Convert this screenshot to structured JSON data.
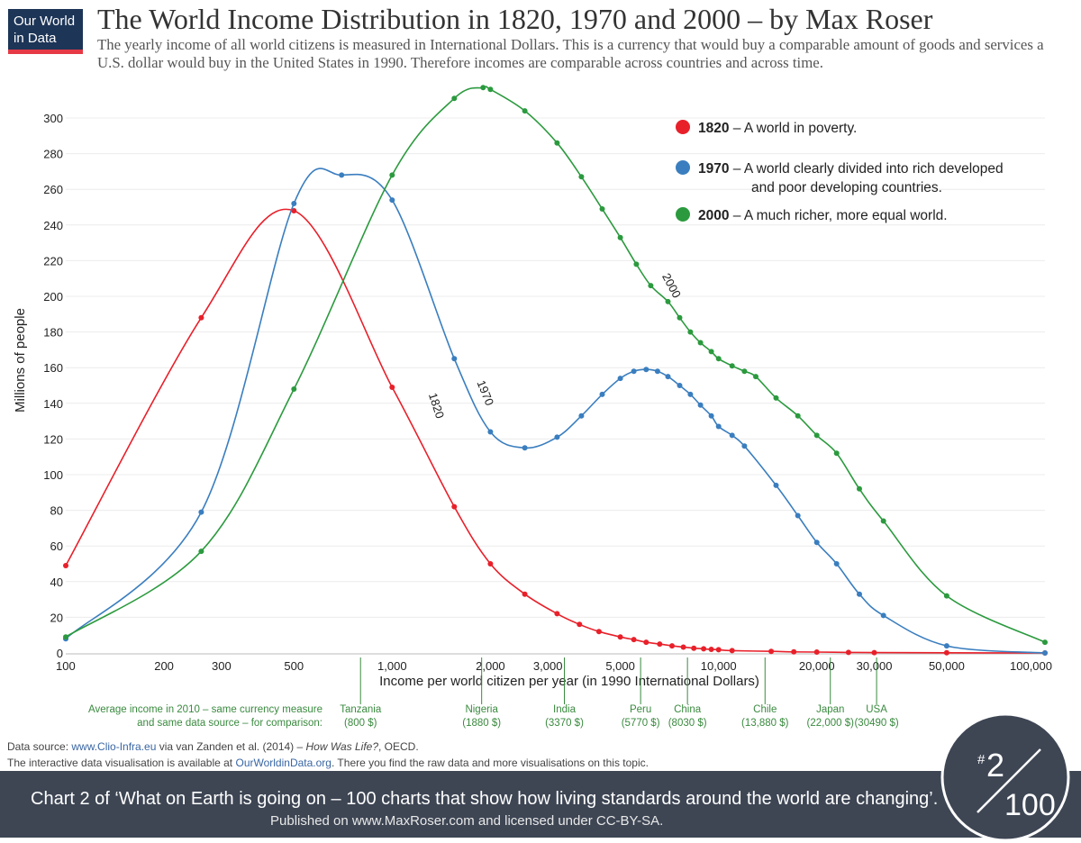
{
  "logo": {
    "line1": "Our World",
    "line2": "in Data"
  },
  "header": {
    "title": "The World Income Distribution in 1820, 1970 and 2000 – by Max Roser",
    "subtitle": "The yearly income of all world citizens is measured in International Dollars. This is a currency that would buy a comparable amount of goods and services a U.S. dollar would buy in the United States in 1990. Therefore incomes are comparable across countries and across time."
  },
  "chart_data": {
    "type": "line",
    "title": "The World Income Distribution in 1820, 1970 and 2000",
    "xlabel": "Income per world citizen per year (in 1990 International Dollars)",
    "ylabel": "Millions of people",
    "xscale": "log",
    "xlim": [
      100,
      100000
    ],
    "ylim": [
      0,
      310
    ],
    "yticks": [
      0,
      20,
      40,
      60,
      80,
      100,
      120,
      140,
      160,
      180,
      200,
      220,
      240,
      260,
      280,
      300
    ],
    "xticks": [
      {
        "value": 100,
        "label": "100"
      },
      {
        "value": 200,
        "label": "200"
      },
      {
        "value": 300,
        "label": "300"
      },
      {
        "value": 500,
        "label": "500"
      },
      {
        "value": 1000,
        "label": "1,000"
      },
      {
        "value": 2000,
        "label": "2,000"
      },
      {
        "value": 3000,
        "label": "3,000"
      },
      {
        "value": 5000,
        "label": "5,000"
      },
      {
        "value": 10000,
        "label": "10,000"
      },
      {
        "value": 20000,
        "label": "20,000"
      },
      {
        "value": 30000,
        "label": "30,000"
      },
      {
        "value": 50000,
        "label": "50,000"
      },
      {
        "value": 100000,
        "label": "100,000"
      }
    ],
    "series": [
      {
        "name": "1820",
        "color": "#e8202a",
        "label_at": [
          1330,
          138
        ],
        "label_angle": 72,
        "points": [
          [
            100,
            49
          ],
          [
            260,
            188
          ],
          [
            500,
            248
          ],
          [
            1000,
            149
          ],
          [
            1550,
            82
          ],
          [
            2000,
            50
          ],
          [
            2550,
            33
          ],
          [
            3200,
            22
          ],
          [
            3750,
            16
          ],
          [
            4300,
            12
          ],
          [
            5000,
            9
          ],
          [
            5500,
            7.5
          ],
          [
            6000,
            6
          ],
          [
            6600,
            5
          ],
          [
            7200,
            4
          ],
          [
            7800,
            3.3
          ],
          [
            8400,
            2.7
          ],
          [
            9000,
            2.3
          ],
          [
            9500,
            2
          ],
          [
            10000,
            1.8
          ],
          [
            11000,
            1.3
          ],
          [
            14500,
            0.9
          ],
          [
            17000,
            0.6
          ],
          [
            20000,
            0.5
          ],
          [
            25000,
            0.3
          ],
          [
            30000,
            0.2
          ],
          [
            50000,
            0.1
          ],
          [
            100000,
            0
          ]
        ]
      },
      {
        "name": "1970",
        "color": "#3a7ebf",
        "label_at": [
          1880,
          145
        ],
        "label_angle": 68,
        "points": [
          [
            100,
            8
          ],
          [
            260,
            79
          ],
          [
            500,
            252
          ],
          [
            700,
            268
          ],
          [
            1000,
            254
          ],
          [
            1550,
            165
          ],
          [
            2000,
            124
          ],
          [
            2550,
            115
          ],
          [
            3200,
            121
          ],
          [
            3800,
            133
          ],
          [
            4400,
            145
          ],
          [
            5000,
            154
          ],
          [
            5500,
            158
          ],
          [
            6000,
            159
          ],
          [
            6500,
            158
          ],
          [
            7000,
            155
          ],
          [
            7600,
            150
          ],
          [
            8200,
            145
          ],
          [
            8800,
            139
          ],
          [
            9500,
            133
          ],
          [
            10000,
            127
          ],
          [
            11000,
            122
          ],
          [
            12000,
            116
          ],
          [
            15000,
            94
          ],
          [
            17500,
            77
          ],
          [
            20000,
            62
          ],
          [
            23000,
            50
          ],
          [
            27000,
            33
          ],
          [
            32000,
            21
          ],
          [
            50000,
            4
          ],
          [
            100000,
            0
          ]
        ]
      },
      {
        "name": "2000",
        "color": "#2b9a3e",
        "label_at": [
          7000,
          205
        ],
        "label_angle": 62,
        "points": [
          [
            100,
            9
          ],
          [
            260,
            57
          ],
          [
            500,
            148
          ],
          [
            1000,
            268
          ],
          [
            1550,
            311
          ],
          [
            1900,
            317
          ],
          [
            2000,
            316
          ],
          [
            2550,
            304
          ],
          [
            3200,
            286
          ],
          [
            3800,
            267
          ],
          [
            4400,
            249
          ],
          [
            5000,
            233
          ],
          [
            5600,
            218
          ],
          [
            6200,
            206
          ],
          [
            7000,
            197
          ],
          [
            7600,
            188
          ],
          [
            8200,
            180
          ],
          [
            8800,
            174
          ],
          [
            9500,
            169
          ],
          [
            10000,
            165
          ],
          [
            11000,
            161
          ],
          [
            12000,
            158
          ],
          [
            13000,
            155
          ],
          [
            15000,
            143
          ],
          [
            17500,
            133
          ],
          [
            20000,
            122
          ],
          [
            23000,
            112
          ],
          [
            27000,
            92
          ],
          [
            32000,
            74
          ],
          [
            50000,
            32
          ],
          [
            100000,
            6
          ]
        ]
      }
    ],
    "legend": {
      "position": "top-right",
      "items": [
        {
          "year": "1820",
          "color": "#e8202a",
          "lines": [
            "– A world in poverty."
          ]
        },
        {
          "year": "1970",
          "color": "#3a7ebf",
          "lines": [
            "– A world clearly divided into rich developed",
            "and poor developing countries."
          ]
        },
        {
          "year": "2000",
          "color": "#2b9a3e",
          "lines": [
            "– A much richer, more equal world."
          ]
        }
      ]
    },
    "comparison": {
      "caption": [
        "Average income in 2010 – same currency measure",
        "and same data source – for comparison:"
      ],
      "color": "#3a8a3f",
      "countries": [
        {
          "name": "Tanzania",
          "income": 800,
          "label": "(800 $)"
        },
        {
          "name": "Nigeria",
          "income": 1880,
          "label": "(1880 $)"
        },
        {
          "name": "India",
          "income": 3370,
          "label": "(3370 $)"
        },
        {
          "name": "Peru",
          "income": 5770,
          "label": "(5770 $)"
        },
        {
          "name": "China",
          "income": 8030,
          "label": "(8030 $)"
        },
        {
          "name": "Chile",
          "income": 13880,
          "label": "(13,880 $)"
        },
        {
          "name": "Japan",
          "income": 22000,
          "label": "(22,000 $)"
        },
        {
          "name": "USA",
          "income": 30490,
          "label": "(30490 $)"
        }
      ]
    }
  },
  "sources": {
    "line1_prefix": "Data source:  ",
    "line1_link": "www.Clio-Infra.eu",
    "line1_mid": " via van Zanden et al. (2014) – ",
    "line1_book": "How Was Life?",
    "line1_suffix": ", OECD.",
    "line2_prefix": "The interactive data visualisation is available at ",
    "line2_link": "OurWorldinData.org",
    "line2_suffix": ". There you find the raw data and more visualisations on this topic."
  },
  "footer": {
    "line1": "Chart 2 of ‘What on Earth is going on – 100 charts that show how living standards around the world are changing’.",
    "line2": "Published on www.MaxRoser.com and licensed under CC-BY-SA."
  },
  "badge": {
    "number": "2",
    "total": "100",
    "hash": "#"
  }
}
